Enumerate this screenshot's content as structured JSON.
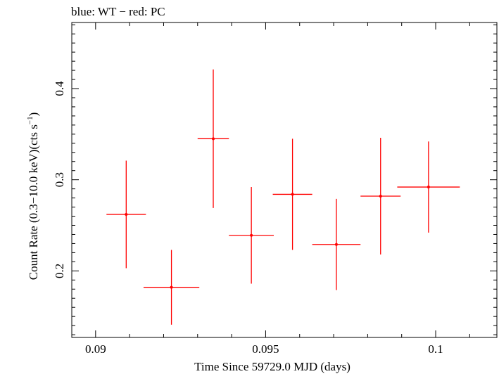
{
  "header": {
    "title": "blue: WT − red: PC"
  },
  "chart_data": {
    "type": "scatter",
    "title": "blue: WT − red: PC",
    "xlabel": "Time Since 59729.0 MJD (days)",
    "ylabel_main": "Count Rate (0.3−10.0 keV)(cts s",
    "ylabel_sup": "−1",
    "ylabel_close": ")",
    "xlim": [
      0.0893,
      0.1018
    ],
    "ylim": [
      0.127,
      0.4725
    ],
    "x_ticks": [
      {
        "value": 0.09,
        "label": "0.09"
      },
      {
        "value": 0.095,
        "label": "0.095"
      },
      {
        "value": 0.1,
        "label": "0.1"
      }
    ],
    "y_ticks": [
      {
        "value": 0.2,
        "label": "0.2"
      },
      {
        "value": 0.3,
        "label": "0.3"
      },
      {
        "value": 0.4,
        "label": "0.4"
      }
    ],
    "series": [
      {
        "color": "#ff0000",
        "points": [
          {
            "x": 0.0909,
            "xerr": 0.00058,
            "y": 0.262,
            "yerr": 0.059
          },
          {
            "x": 0.09223,
            "xerr": 0.00082,
            "y": 0.182,
            "yerr": 0.041
          },
          {
            "x": 0.09346,
            "xerr": 0.00046,
            "y": 0.345,
            "yerr": 0.076
          },
          {
            "x": 0.09458,
            "xerr": 0.00066,
            "y": 0.239,
            "yerr": 0.053
          },
          {
            "x": 0.09579,
            "xerr": 0.00058,
            "y": 0.284,
            "yerr": 0.061
          },
          {
            "x": 0.09708,
            "xerr": 0.00071,
            "y": 0.229,
            "yerr": 0.05
          },
          {
            "x": 0.09838,
            "xerr": 0.00059,
            "y": 0.282,
            "yerr": 0.064
          },
          {
            "x": 0.09979,
            "xerr": 0.00092,
            "y": 0.292,
            "yerr": 0.05
          }
        ]
      }
    ]
  }
}
